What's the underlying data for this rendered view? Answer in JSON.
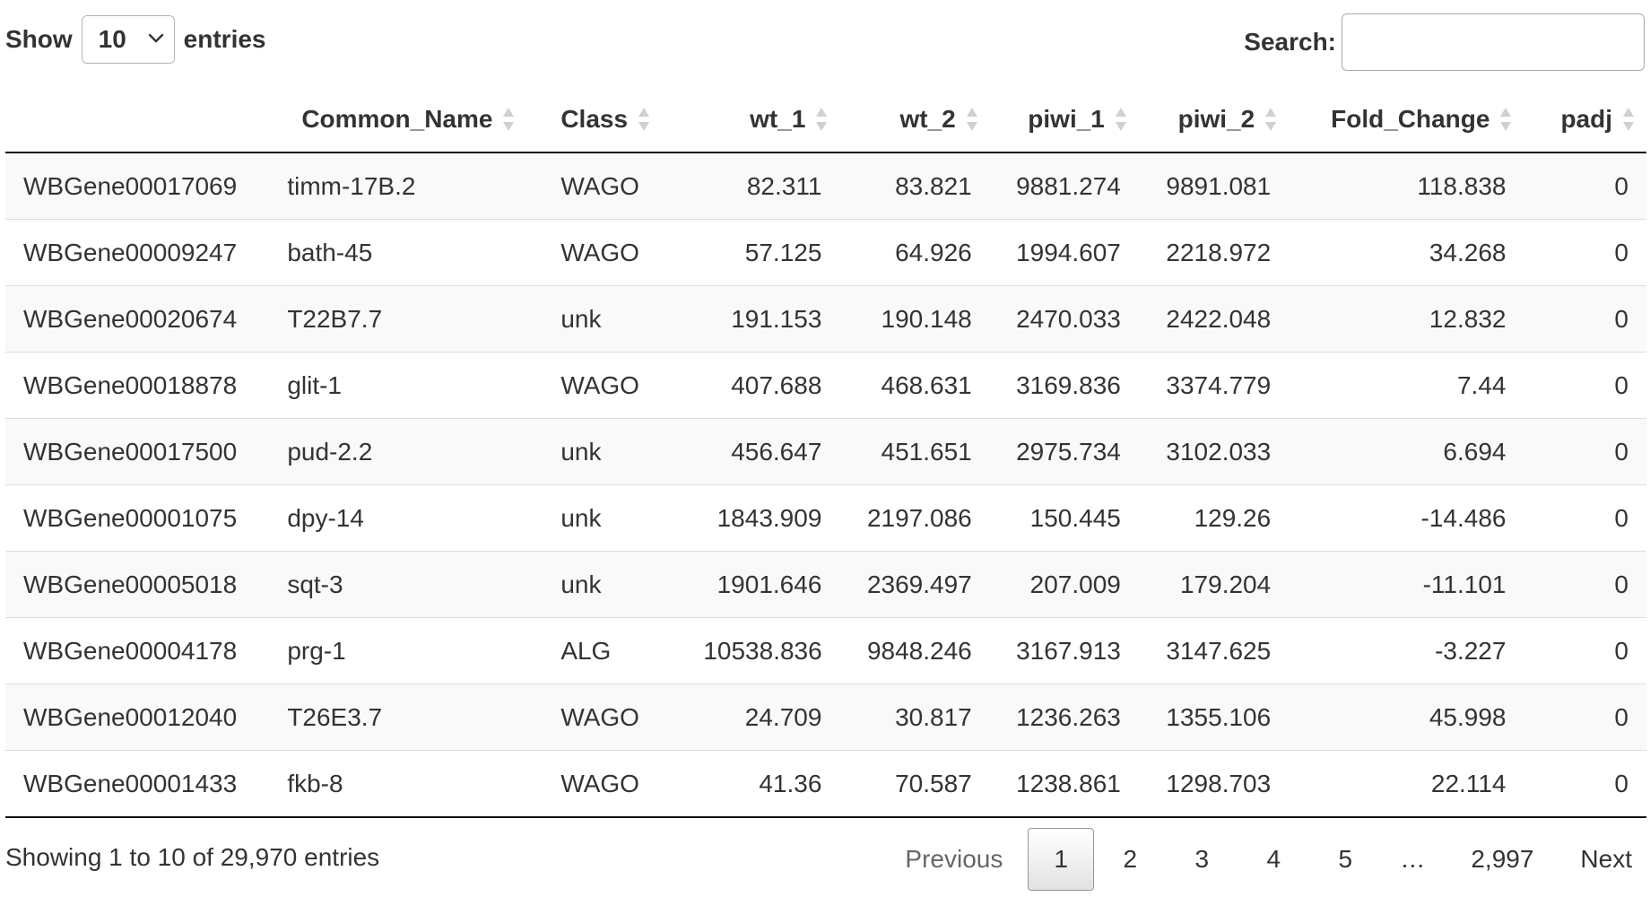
{
  "length_control": {
    "show_label": "Show",
    "selected": "10",
    "entries_label": "entries"
  },
  "search": {
    "label": "Search:",
    "value": "",
    "placeholder": ""
  },
  "table": {
    "columns": [
      "",
      "Common_Name",
      "Class",
      "wt_1",
      "wt_2",
      "piwi_1",
      "piwi_2",
      "Fold_Change",
      "padj"
    ],
    "rows": [
      [
        "WBGene00017069",
        "timm-17B.2",
        "WAGO",
        "82.311",
        "83.821",
        "9881.274",
        "9891.081",
        "118.838",
        "0"
      ],
      [
        "WBGene00009247",
        "bath-45",
        "WAGO",
        "57.125",
        "64.926",
        "1994.607",
        "2218.972",
        "34.268",
        "0"
      ],
      [
        "WBGene00020674",
        "T22B7.7",
        "unk",
        "191.153",
        "190.148",
        "2470.033",
        "2422.048",
        "12.832",
        "0"
      ],
      [
        "WBGene00018878",
        "glit-1",
        "WAGO",
        "407.688",
        "468.631",
        "3169.836",
        "3374.779",
        "7.44",
        "0"
      ],
      [
        "WBGene00017500",
        "pud-2.2",
        "unk",
        "456.647",
        "451.651",
        "2975.734",
        "3102.033",
        "6.694",
        "0"
      ],
      [
        "WBGene00001075",
        "dpy-14",
        "unk",
        "1843.909",
        "2197.086",
        "150.445",
        "129.26",
        "-14.486",
        "0"
      ],
      [
        "WBGene00005018",
        "sqt-3",
        "unk",
        "1901.646",
        "2369.497",
        "207.009",
        "179.204",
        "-11.101",
        "0"
      ],
      [
        "WBGene00004178",
        "prg-1",
        "ALG",
        "10538.836",
        "9848.246",
        "3167.913",
        "3147.625",
        "-3.227",
        "0"
      ],
      [
        "WBGene00012040",
        "T26E3.7",
        "WAGO",
        "24.709",
        "30.817",
        "1236.263",
        "1355.106",
        "45.998",
        "0"
      ],
      [
        "WBGene00001433",
        "fkb-8",
        "WAGO",
        "41.36",
        "70.587",
        "1238.861",
        "1298.703",
        "22.114",
        "0"
      ]
    ]
  },
  "footer": {
    "info": "Showing 1 to 10 of 29,970 entries",
    "pagination": {
      "previous": "Previous",
      "pages": [
        "1",
        "2",
        "3",
        "4",
        "5"
      ],
      "current": "1",
      "ellipsis": "…",
      "last": "2,997",
      "next": "Next"
    }
  },
  "icons": {
    "select_chevron": "chevron-down-icon",
    "sort": "sort-both-icon"
  },
  "colors": {
    "row_odd": "#f9f9f9",
    "row_even": "#ffffff",
    "border_strong": "#111111",
    "sort_icon": "#d0d0d0"
  }
}
